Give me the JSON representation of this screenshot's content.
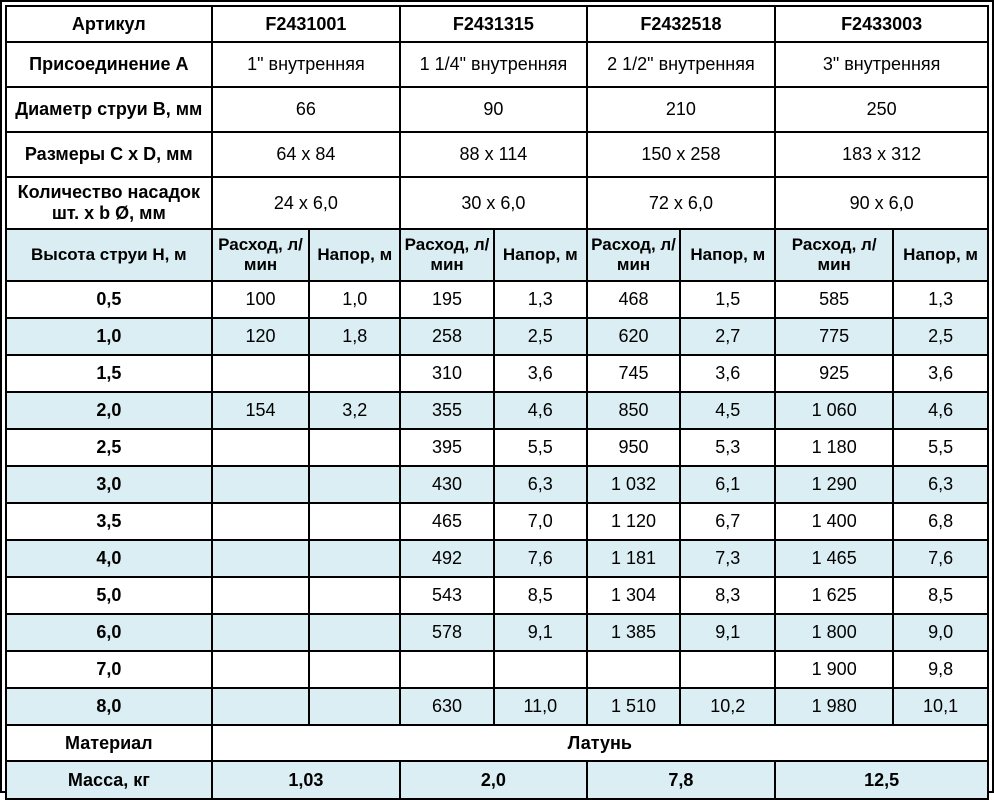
{
  "table": {
    "header_rows": [
      {
        "label": "Артикул",
        "values": [
          "F2431001",
          "F2431315",
          "F2432518",
          "F2433003"
        ],
        "style": "article"
      },
      {
        "label": "Присоединение А",
        "values": [
          "1\" внутренняя",
          "1 1/4\" внутренняя",
          "2 1/2\" внутренняя",
          "3\" внутренняя"
        ],
        "style": "plain"
      },
      {
        "label": "Диаметр струи В, мм",
        "values": [
          "66",
          "90",
          "210",
          "250"
        ],
        "style": "plain"
      },
      {
        "label": "Размеры С x D, мм",
        "values": [
          "64 x 84",
          "88 x 114",
          "150 x 258",
          "183 x 312"
        ],
        "style": "plain"
      },
      {
        "label": "Количество насадок шт. x b Ø, мм",
        "values": [
          "24 x 6,0",
          "30 x 6,0",
          "72 x 6,0",
          "90 x 6,0"
        ],
        "style": "plain"
      }
    ],
    "flow_header": {
      "label": "Высота струи Н, м",
      "flow_col": "Расход, л/мин",
      "head_col": "Напор, м"
    },
    "rows": [
      {
        "h": "0,5",
        "cells": [
          "100",
          "1,0",
          "195",
          "1,3",
          "468",
          "1,5",
          "585",
          "1,3"
        ]
      },
      {
        "h": "1,0",
        "cells": [
          "120",
          "1,8",
          "258",
          "2,5",
          "620",
          "2,7",
          "775",
          "2,5"
        ]
      },
      {
        "h": "1,5",
        "cells": [
          "",
          "",
          "310",
          "3,6",
          "745",
          "3,6",
          "925",
          "3,6"
        ]
      },
      {
        "h": "2,0",
        "cells": [
          "154",
          "3,2",
          "355",
          "4,6",
          "850",
          "4,5",
          "1 060",
          "4,6"
        ]
      },
      {
        "h": "2,5",
        "cells": [
          "",
          "",
          "395",
          "5,5",
          "950",
          "5,3",
          "1 180",
          "5,5"
        ]
      },
      {
        "h": "3,0",
        "cells": [
          "",
          "",
          "430",
          "6,3",
          "1 032",
          "6,1",
          "1 290",
          "6,3"
        ]
      },
      {
        "h": "3,5",
        "cells": [
          "",
          "",
          "465",
          "7,0",
          "1 120",
          "6,7",
          "1 400",
          "6,8"
        ]
      },
      {
        "h": "4,0",
        "cells": [
          "",
          "",
          "492",
          "7,6",
          "1 181",
          "7,3",
          "1 465",
          "7,6"
        ]
      },
      {
        "h": "5,0",
        "cells": [
          "",
          "",
          "543",
          "8,5",
          "1 304",
          "8,3",
          "1 625",
          "8,5"
        ]
      },
      {
        "h": "6,0",
        "cells": [
          "",
          "",
          "578",
          "9,1",
          "1 385",
          "9,1",
          "1 800",
          "9,0"
        ]
      },
      {
        "h": "7,0",
        "cells": [
          "",
          "",
          "",
          "",
          "",
          "",
          "1 900",
          "9,8"
        ]
      },
      {
        "h": "8,0",
        "cells": [
          "",
          "",
          "630",
          "11,0",
          "1 510",
          "10,2",
          "1 980",
          "10,1"
        ]
      }
    ],
    "material": {
      "label": "Материал",
      "value": "Латунь"
    },
    "mass": {
      "label": "Масса, кг",
      "values": [
        "1,03",
        "2,0",
        "7,8",
        "12,5"
      ]
    }
  },
  "colors": {
    "article_blue": "#1a3ea6",
    "row_blue": "#daeef3",
    "border": "#000000"
  }
}
